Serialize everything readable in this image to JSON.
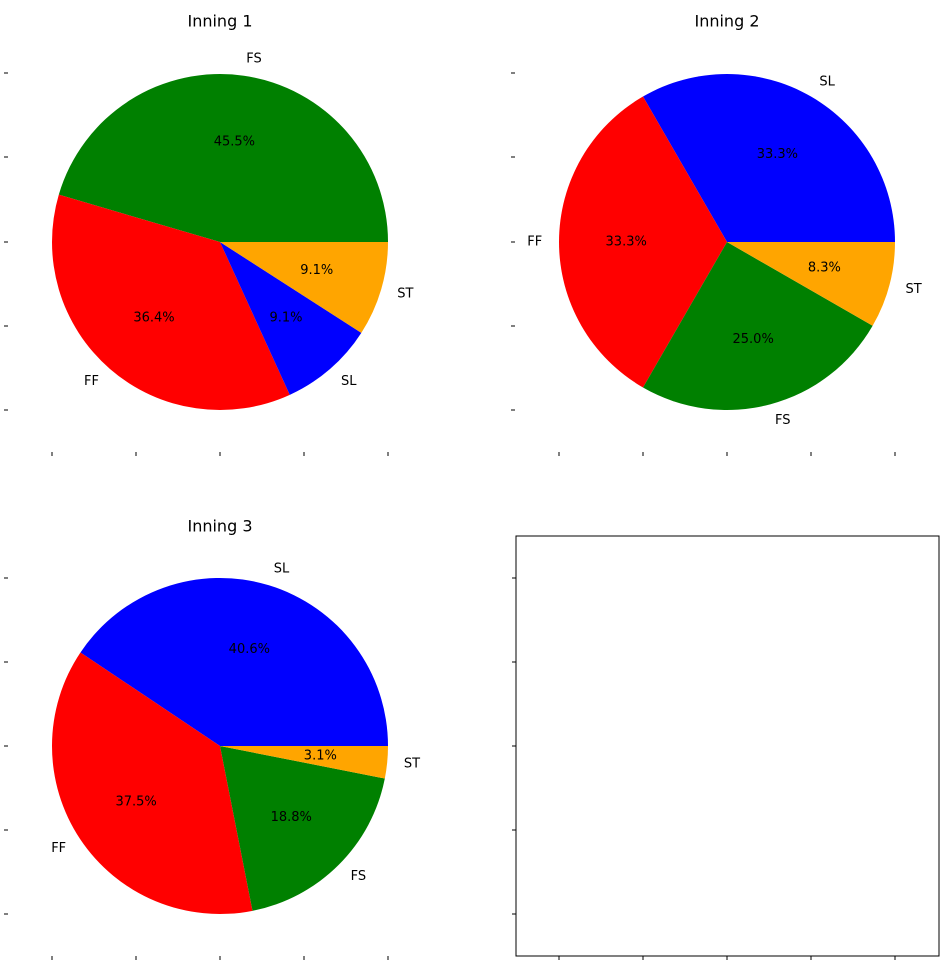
{
  "colors": {
    "FF": "#ff0000",
    "FS": "#008000",
    "SL": "#0000ff",
    "ST": "#ffa500"
  },
  "chart_data": [
    {
      "type": "pie",
      "title": "Inning 1",
      "slices": [
        {
          "label": "FS",
          "value": 45.5,
          "pct_label": "45.5%"
        },
        {
          "label": "FF",
          "value": 36.4,
          "pct_label": "36.4%"
        },
        {
          "label": "SL",
          "value": 9.1,
          "pct_label": "9.1%"
        },
        {
          "label": "ST",
          "value": 9.1,
          "pct_label": "9.1%"
        }
      ]
    },
    {
      "type": "pie",
      "title": "Inning 2",
      "slices": [
        {
          "label": "SL",
          "value": 33.3,
          "pct_label": "33.3%"
        },
        {
          "label": "FF",
          "value": 33.3,
          "pct_label": "33.3%"
        },
        {
          "label": "FS",
          "value": 25.0,
          "pct_label": "25.0%"
        },
        {
          "label": "ST",
          "value": 8.3,
          "pct_label": "8.3%"
        }
      ]
    },
    {
      "type": "pie",
      "title": "Inning 3",
      "slices": [
        {
          "label": "SL",
          "value": 40.6,
          "pct_label": "40.6%"
        },
        {
          "label": "FF",
          "value": 37.5,
          "pct_label": "37.5%"
        },
        {
          "label": "FS",
          "value": 18.8,
          "pct_label": "18.8%"
        },
        {
          "label": "ST",
          "value": 3.1,
          "pct_label": "3.1%"
        }
      ]
    },
    {
      "type": "pie",
      "title": "",
      "slices": []
    }
  ]
}
